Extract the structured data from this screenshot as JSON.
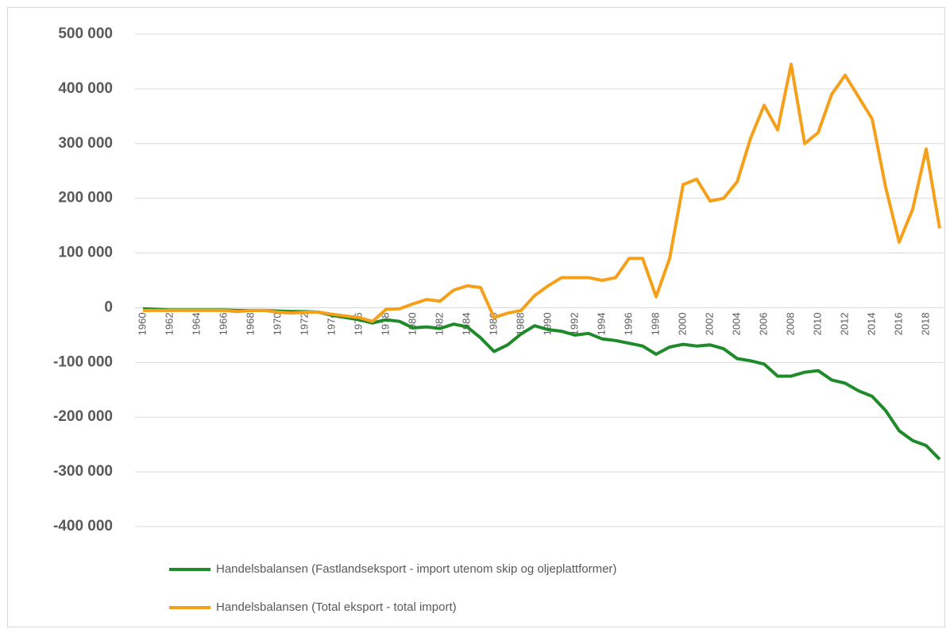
{
  "chart_data": {
    "type": "line",
    "categories": [
      "1960",
      null,
      "1962",
      null,
      "1964",
      null,
      "1966",
      null,
      "1968",
      null,
      "1970",
      null,
      "1972",
      null,
      "1974",
      null,
      "1976",
      null,
      "1978",
      null,
      "1980",
      null,
      "1982",
      null,
      "1984",
      null,
      "1986",
      null,
      "1988",
      null,
      "1990",
      null,
      "1992",
      null,
      "1994",
      null,
      "1996",
      null,
      "1998",
      null,
      "2000",
      null,
      "2002",
      null,
      "2004",
      null,
      "2006",
      null,
      "2008",
      null,
      "2010",
      null,
      "2012",
      null,
      "2014",
      null,
      "2016",
      null,
      "2018",
      null
    ],
    "series": [
      {
        "name": "Handelsbalansen (Fastlandseksport - import utenom skip og oljeplattformer)",
        "color": "#1f8a2a",
        "values": [
          -2000,
          -3000,
          -4000,
          -4000,
          -4000,
          -4000,
          -4000,
          -5000,
          -5000,
          -5000,
          -6000,
          -7000,
          -7000,
          -8000,
          -14000,
          -18000,
          -22000,
          -28000,
          -22000,
          -25000,
          -37000,
          -35000,
          -38000,
          -30000,
          -35000,
          -55000,
          -80000,
          -68000,
          -48000,
          -33000,
          -40000,
          -43000,
          -50000,
          -47000,
          -57000,
          -60000,
          -65000,
          -70000,
          -85000,
          -72000,
          -67000,
          -70000,
          -68000,
          -75000,
          -93000,
          -97000,
          -103000,
          -125000,
          -125000,
          -118000,
          -115000,
          -132000,
          -138000,
          -152000,
          -162000,
          -188000,
          -225000,
          -243000,
          -252000,
          -277000
        ]
      },
      {
        "name": "Handelsbalansen (Total eksport - total import)",
        "color": "#f5a01a",
        "values": [
          -5000,
          -5000,
          -5000,
          -5000,
          -5000,
          -5000,
          -5000,
          -7000,
          -5000,
          -5000,
          -8000,
          -10000,
          -8000,
          -8000,
          -12000,
          -15000,
          -18000,
          -25000,
          -3000,
          -2000,
          7000,
          15000,
          12000,
          32000,
          40000,
          37000,
          -18000,
          -10000,
          -5000,
          22000,
          40000,
          55000,
          55000,
          55000,
          50000,
          55000,
          90000,
          90000,
          20000,
          90000,
          225000,
          235000,
          195000,
          200000,
          230000,
          310000,
          370000,
          325000,
          445000,
          300000,
          320000,
          390000,
          425000,
          385000,
          345000,
          220000,
          120000,
          180000,
          290000,
          145000
        ]
      }
    ],
    "ylim": [
      -400000,
      500000
    ],
    "yticks": [
      {
        "value": -400000,
        "label": "-400 000"
      },
      {
        "value": -300000,
        "label": "-300 000"
      },
      {
        "value": -200000,
        "label": "-200 000"
      },
      {
        "value": -100000,
        "label": "-100 000"
      },
      0,
      {
        "value": 100000,
        "label": "100 000"
      },
      {
        "value": 200000,
        "label": "200 000"
      },
      {
        "value": 300000,
        "label": "300 000"
      },
      {
        "value": 400000,
        "label": "400 000"
      },
      {
        "value": 500000,
        "label": "500 000"
      }
    ],
    "grid": true
  }
}
